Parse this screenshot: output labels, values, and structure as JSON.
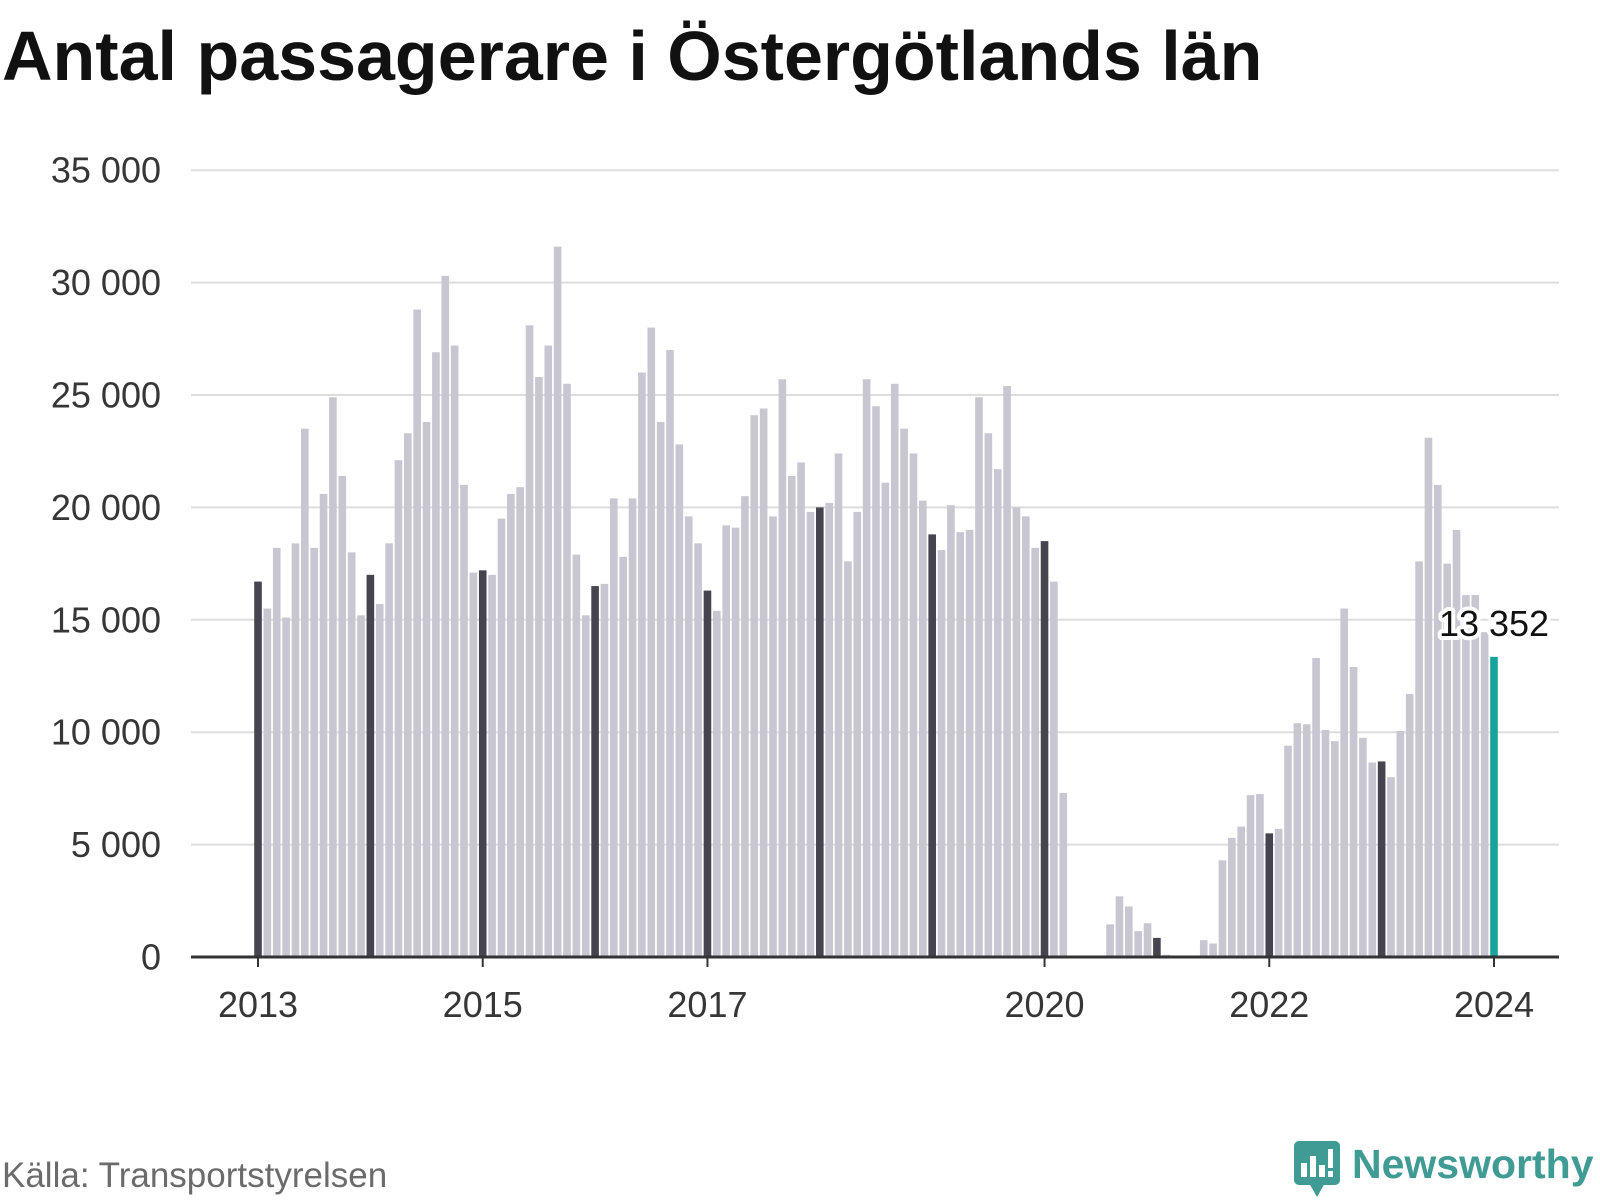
{
  "chart_data": {
    "type": "bar",
    "title": "Antal passagerare i Östergötlands län",
    "xlabel": "",
    "ylabel": "",
    "ylim": [
      0,
      35000
    ],
    "grid": true,
    "yticks": [
      0,
      5000,
      10000,
      15000,
      20000,
      25000,
      30000,
      35000
    ],
    "ytick_labels": [
      "0",
      "5 000",
      "10 000",
      "15 000",
      "20 000",
      "25 000",
      "30 000",
      "35 000"
    ],
    "xtick_labels": [
      "2013",
      "2015",
      "2017",
      "2020",
      "2022",
      "2024"
    ],
    "data": [
      {
        "year": 2013,
        "values": [
          16700,
          15500,
          18200,
          15100,
          18400,
          23500,
          18200,
          20600,
          24900,
          21400,
          18000,
          15200
        ]
      },
      {
        "year": 2014,
        "values": [
          17000,
          15700,
          18400,
          22100,
          23300,
          28800,
          23800,
          26900,
          30300,
          27200,
          21000,
          17100
        ]
      },
      {
        "year": 2015,
        "values": [
          17200,
          17000,
          19500,
          20600,
          20900,
          28100,
          25800,
          27200,
          31600,
          25500,
          17900,
          15200
        ]
      },
      {
        "year": 2016,
        "values": [
          16500,
          16600,
          20400,
          17800,
          20400,
          26000,
          28000,
          23800,
          27000,
          22800,
          19600,
          18400
        ]
      },
      {
        "year": 2017,
        "values": [
          16300,
          15400,
          19200,
          19100,
          20500,
          24100,
          24400,
          19600,
          25700,
          21400,
          22000,
          19800
        ]
      },
      {
        "year": 2018,
        "values": [
          20000,
          20200,
          22400,
          17600,
          19800,
          25700,
          24500,
          21100,
          25500,
          23500,
          22400,
          20300
        ]
      },
      {
        "year": 2019,
        "values": [
          18800,
          18100,
          20100,
          18900,
          19000,
          24900,
          23300,
          21700,
          25400,
          20000,
          19600,
          18200
        ]
      },
      {
        "year": 2020,
        "values": [
          18500,
          16700,
          7300,
          0,
          0,
          0,
          0,
          1450,
          2700,
          2250,
          1150,
          1500
        ]
      },
      {
        "year": 2021,
        "values": [
          850,
          100,
          0,
          0,
          0,
          750,
          600,
          4300,
          5300,
          5800,
          7200,
          7250
        ]
      },
      {
        "year": 2022,
        "values": [
          5500,
          5700,
          9400,
          10400,
          10350,
          13300,
          10100,
          9600,
          15500,
          12900,
          9750,
          8650
        ]
      },
      {
        "year": 2023,
        "values": [
          8700,
          8000,
          10050,
          11700,
          17600,
          23100,
          21000,
          17500,
          19000,
          16100,
          16100,
          14450
        ]
      },
      {
        "year": 2024,
        "values": [
          13352
        ]
      }
    ],
    "latest_label": "13 352",
    "colors": {
      "bar": "#c7c6d1",
      "year_start_bar": "#46454f",
      "latest_bar": "#17a39b",
      "grid": "#dddddd",
      "axis": "#333333"
    }
  },
  "footer": {
    "source": "Källa: Transportstyrelsen",
    "brand": "Newsworthy",
    "brand_icon": "bar-chart-speech-bubble-icon",
    "brand_color": "#3f9b94"
  }
}
